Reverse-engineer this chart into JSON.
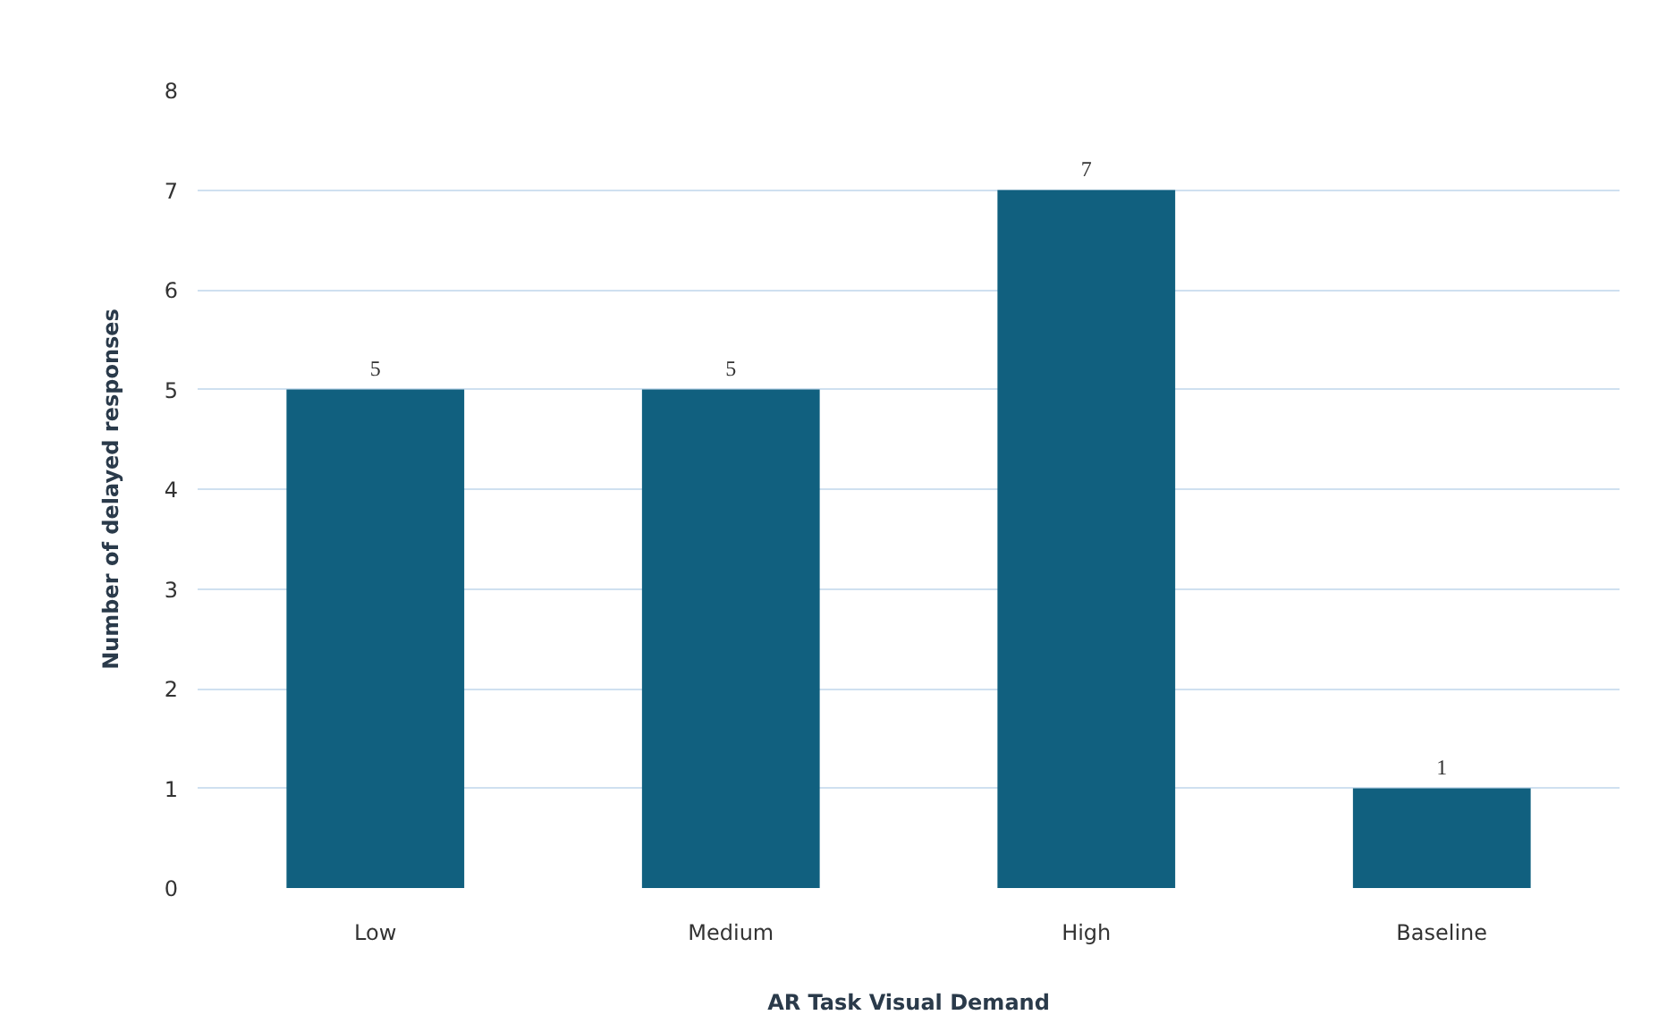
{
  "chart_data": {
    "type": "bar",
    "xlabel": "AR Task Visual Demand",
    "ylabel": "Number of delayed responses",
    "categories": [
      "Low",
      "Medium",
      "High",
      "Baseline"
    ],
    "values": [
      5,
      5,
      7,
      1
    ],
    "color": "#11607f",
    "ylim": [
      0,
      8
    ],
    "yticks": [
      0,
      1,
      2,
      3,
      4,
      5,
      6,
      7,
      8
    ],
    "grid": "y",
    "data_labels": true
  }
}
